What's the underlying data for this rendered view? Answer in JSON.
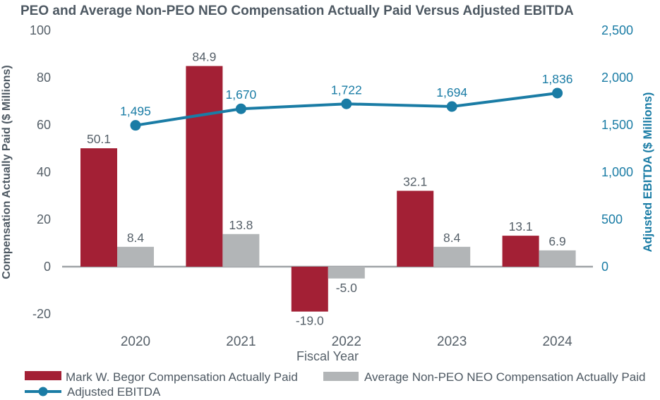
{
  "colors": {
    "peo_red": "#A32035",
    "neo_gray": "#B2B5B7",
    "ebitda_teal": "#1A7CA5",
    "text_dark": "#4D5862",
    "text_tick": "#566069",
    "axis_line": "#A0A4A7",
    "background": "#FFFFFF"
  },
  "chart_data": {
    "type": "bar",
    "subtype": "combo-bar-line",
    "title": "PEO and Average Non-PEO NEO Compensation Actually Paid Versus Adjusted EBITDA",
    "categories": [
      "2020",
      "2021",
      "2022",
      "2023",
      "2024"
    ],
    "xlabel": "Fiscal Year",
    "grid": false,
    "legend_position": "bottom-left",
    "left_axis": {
      "label": "Compensation Actually Paid ($ Millions)",
      "lim": [
        -20,
        100
      ],
      "ticks": [
        100,
        80,
        60,
        40,
        20,
        0,
        -20
      ],
      "tick_labels": [
        "100",
        "80",
        "60",
        "40",
        "20",
        "0",
        "-20"
      ]
    },
    "right_axis": {
      "label": "Adjusted EBITDA ($ Millions)",
      "lim": [
        0,
        2500
      ],
      "ticks": [
        0,
        500,
        1000,
        1500,
        2000,
        2500
      ],
      "tick_labels": [
        "0",
        "500",
        "1,000",
        "1,500",
        "2,000",
        "2,500"
      ]
    },
    "series": [
      {
        "name": "Mark W. Begor Compensation Actually Paid",
        "type": "bar",
        "axis": "left",
        "color": "#A32035",
        "values": [
          50.1,
          84.9,
          -19.0,
          32.1,
          13.1
        ],
        "labels": [
          "50.1",
          "84.9",
          "-19.0",
          "32.1",
          "13.1"
        ]
      },
      {
        "name": "Average Non-PEO NEO Compensation Actually Paid",
        "type": "bar",
        "axis": "left",
        "color": "#B2B5B7",
        "values": [
          8.4,
          13.8,
          -5.0,
          8.4,
          6.9
        ],
        "labels": [
          "8.4",
          "13.8",
          "-5.0",
          "8.4",
          "6.9"
        ]
      },
      {
        "name": "Adjusted EBITDA",
        "type": "line",
        "axis": "right",
        "color": "#1A7CA5",
        "values": [
          1495,
          1670,
          1722,
          1694,
          1836
        ],
        "labels": [
          "1,495",
          "1,670",
          "1,722",
          "1,694",
          "1,836"
        ]
      }
    ]
  }
}
